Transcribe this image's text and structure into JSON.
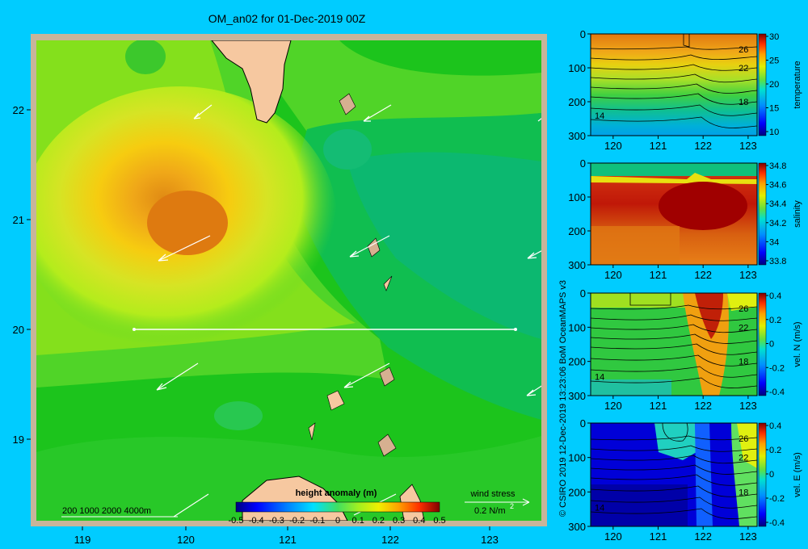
{
  "title": "OM_an02 for 01-Dec-2019 00Z",
  "credit": "© CSIRO 2019   12-Dec-2019 13:23:06 BoM OceanMAPS v3",
  "colors": {
    "background": "#00ccff",
    "land": "#f6c8a0",
    "frame": "#c8b49a"
  },
  "map": {
    "x_ticks": [
      "119",
      "120",
      "121",
      "122",
      "123"
    ],
    "y_ticks": [
      "22",
      "21",
      "20",
      "19"
    ],
    "bathymetry_legend": [
      "200",
      "1000",
      "2000",
      "4000m"
    ],
    "colorbar": {
      "label": "height anomaly (m)",
      "ticks": [
        "-0.5",
        "-0.4",
        "-0.3",
        "-0.2",
        "-0.1",
        "0",
        "0.1",
        "0.2",
        "0.3",
        "0.4",
        "0.5"
      ]
    },
    "wind_stress": {
      "label": "wind stress",
      "unit": "0.2 N/m",
      "unit_sup": "2"
    },
    "transect": {
      "lat": 20.0,
      "lon_start": 119.5,
      "lon_end": 123.2
    }
  },
  "chart_data": [
    {
      "type": "heatmap",
      "title": "OM_an02 for 01-Dec-2019 00Z",
      "colorbar_label": "height anomaly (m)",
      "clim": [
        -0.5,
        0.5
      ],
      "xlim": [
        118.5,
        123.5
      ],
      "ylim": [
        18.3,
        22.7
      ],
      "x_ticks": [
        119,
        120,
        121,
        122,
        123
      ],
      "y_ticks": [
        19,
        20,
        21,
        22
      ],
      "features": {
        "max_anomaly_center": {
          "lon": 120.0,
          "lat": 21.0,
          "value": 0.35
        },
        "east_region_value": 0.05
      },
      "wind_vectors": [
        {
          "lon": 120.2,
          "lat": 22.05,
          "dir": "SW"
        },
        {
          "lon": 122.0,
          "lat": 21.95,
          "dir": "SW"
        },
        {
          "lon": 120.2,
          "lat": 20.85,
          "dir": "SW"
        },
        {
          "lon": 121.9,
          "lat": 20.85,
          "dir": "SW"
        },
        {
          "lon": 119.9,
          "lat": 19.7,
          "dir": "SW"
        },
        {
          "lon": 121.9,
          "lat": 19.75,
          "dir": "SW"
        }
      ]
    },
    {
      "type": "heatmap",
      "colorbar_label": "temperature",
      "xlim": [
        119.5,
        123.2
      ],
      "ylim": [
        300,
        0
      ],
      "x_ticks": [
        120,
        121,
        122,
        123
      ],
      "y_ticks": [
        0,
        100,
        200,
        300
      ],
      "colorbar_ticks": [
        30,
        25,
        20,
        15,
        10
      ],
      "contour_labels": [
        {
          "value": "26",
          "x": 122.9,
          "depth": 45
        },
        {
          "value": "22",
          "x": 122.9,
          "depth": 100
        },
        {
          "value": "18",
          "x": 122.9,
          "depth": 200
        },
        {
          "value": "14",
          "x": 119.7,
          "depth": 240
        }
      ]
    },
    {
      "type": "heatmap",
      "colorbar_label": "salinity",
      "xlim": [
        119.5,
        123.2
      ],
      "ylim": [
        300,
        0
      ],
      "x_ticks": [
        120,
        121,
        122,
        123
      ],
      "y_ticks": [
        0,
        100,
        200,
        300
      ],
      "colorbar_ticks": [
        34.8,
        34.6,
        34.4,
        34.2,
        34,
        33.8
      ]
    },
    {
      "type": "heatmap",
      "colorbar_label": "vel. N (m/s)",
      "xlim": [
        119.5,
        123.2
      ],
      "ylim": [
        300,
        0
      ],
      "x_ticks": [
        120,
        121,
        122,
        123
      ],
      "y_ticks": [
        0,
        100,
        200,
        300
      ],
      "colorbar_ticks": [
        0.4,
        0.2,
        0,
        -0.2,
        -0.4
      ],
      "contour_labels": [
        {
          "value": "26",
          "x": 122.9,
          "depth": 45
        },
        {
          "value": "22",
          "x": 122.9,
          "depth": 100
        },
        {
          "value": "18",
          "x": 122.9,
          "depth": 200
        },
        {
          "value": "14",
          "x": 119.7,
          "depth": 245
        }
      ]
    },
    {
      "type": "heatmap",
      "colorbar_label": "vel. E (m/s)",
      "xlim": [
        119.5,
        123.2
      ],
      "ylim": [
        300,
        0
      ],
      "x_ticks": [
        120,
        121,
        122,
        123
      ],
      "y_ticks": [
        0,
        100,
        200,
        300
      ],
      "colorbar_ticks": [
        0.4,
        0.2,
        0,
        -0.2,
        -0.4
      ],
      "contour_labels": [
        {
          "value": "26",
          "x": 122.9,
          "depth": 45
        },
        {
          "value": "22",
          "x": 122.9,
          "depth": 100
        },
        {
          "value": "18",
          "x": 122.9,
          "depth": 200
        },
        {
          "value": "14",
          "x": 119.7,
          "depth": 245
        }
      ]
    }
  ]
}
